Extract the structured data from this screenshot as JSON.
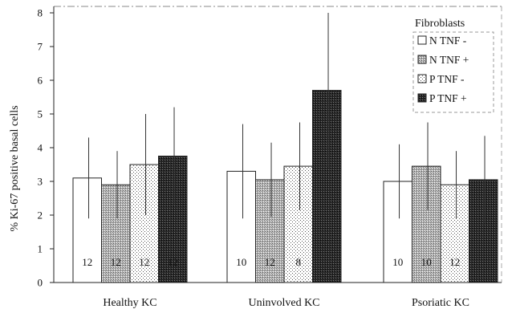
{
  "chart_data": {
    "type": "bar",
    "title": "",
    "xlabel": "",
    "ylabel": "% Ki-67 positive basal cells",
    "ylim": [
      0,
      8
    ],
    "yticks": [
      "0",
      "1",
      "2",
      "3",
      "4",
      "5",
      "6",
      "7",
      "8"
    ],
    "grid": false,
    "legend_title": "Fibroblasts",
    "legend_position": "top-right",
    "categories": [
      "Healthy KC",
      "Uninvolved KC",
      "Psoriatic KC"
    ],
    "series": [
      {
        "name": "N TNF -",
        "values": [
          3.1,
          3.3,
          3.0
        ],
        "error": [
          1.2,
          1.4,
          1.1
        ],
        "n": [
          "12",
          "10",
          "10"
        ],
        "pattern": "white",
        "color": "#ffffff"
      },
      {
        "name": "N TNF +",
        "values": [
          2.9,
          3.05,
          3.45
        ],
        "error": [
          1.0,
          1.1,
          1.3
        ],
        "n": [
          "12",
          "12",
          "10"
        ],
        "pattern": "gray-stipple",
        "color": "#a8a8a8"
      },
      {
        "name": "P TNF -",
        "values": [
          3.5,
          3.45,
          2.9
        ],
        "error": [
          1.5,
          1.3,
          1.0
        ],
        "n": [
          "12",
          "8",
          "12"
        ],
        "pattern": "light-dots",
        "color": "#f0f0f0"
      },
      {
        "name": "P TNF +",
        "values": [
          3.75,
          5.7,
          3.05
        ],
        "error": [
          1.45,
          2.3,
          1.3
        ],
        "n": [
          "12",
          "",
          ""
        ],
        "pattern": "dark-stipple",
        "color": "#2a2a2a"
      }
    ]
  }
}
